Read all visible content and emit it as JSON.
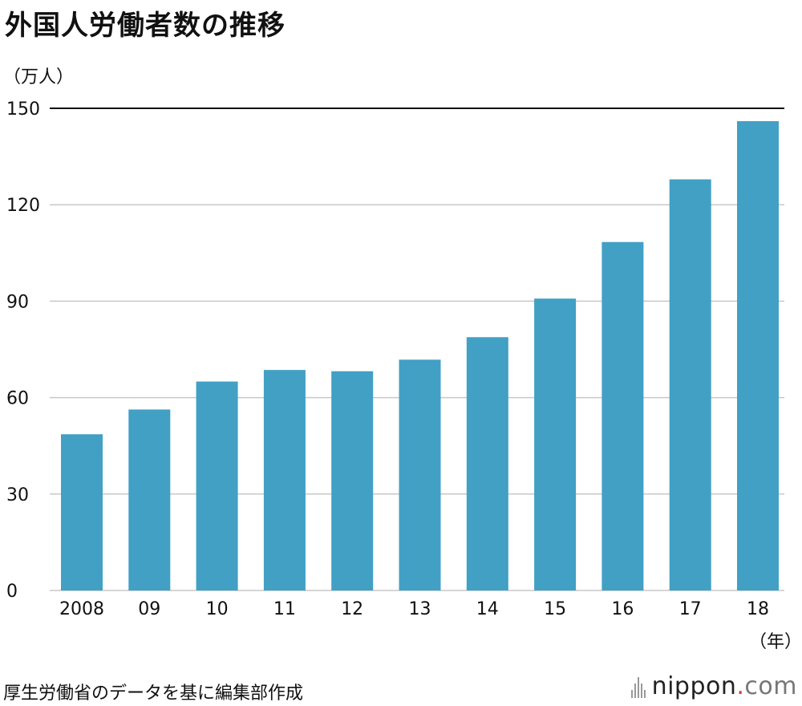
{
  "chart_data": {
    "type": "bar",
    "title": "外国人労働者数の推移",
    "ylabel": "（万人）",
    "xlabel": "（年）",
    "categories": [
      "2008",
      "09",
      "10",
      "11",
      "12",
      "13",
      "14",
      "15",
      "16",
      "17",
      "18"
    ],
    "values": [
      48.6,
      56.3,
      65.0,
      68.6,
      68.2,
      71.8,
      78.8,
      90.8,
      108.4,
      127.9,
      146.0
    ],
    "ylim": [
      0,
      150
    ],
    "yticks": [
      "0",
      "30",
      "60",
      "90",
      "120",
      "150"
    ],
    "bar_color": "#41a0c4",
    "grid": true
  },
  "footer": {
    "source": "厚生労働省のデータを基に編集部作成",
    "brand_name": "nippon",
    "brand_dot": ".",
    "brand_tld": "com"
  }
}
